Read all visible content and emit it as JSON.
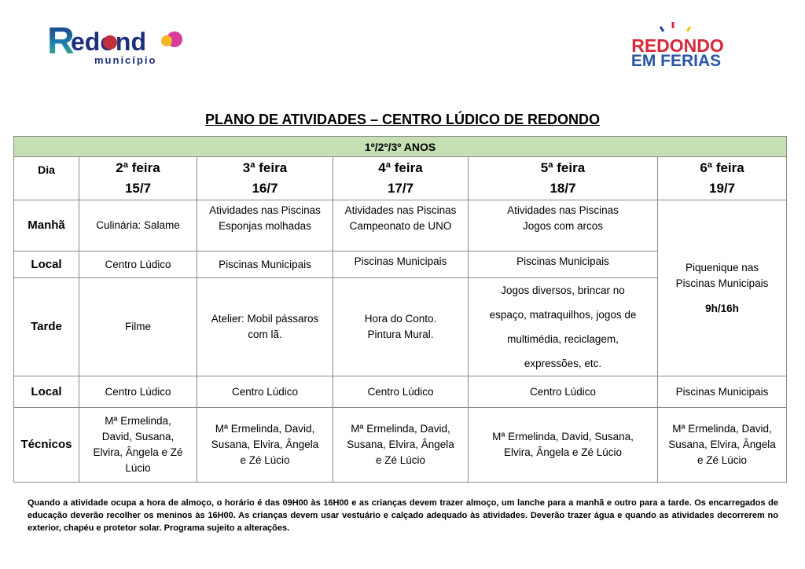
{
  "logos": {
    "left": "Redondo município",
    "right": "REDONDO EM FÉRIAS"
  },
  "title": "PLANO DE ATIVIDADES – CENTRO LÚDICO DE REDONDO",
  "grade": "1º/2º/3º ANOS",
  "header": {
    "dia": "Dia",
    "days": [
      {
        "name": "2ª feira",
        "date": "15/7"
      },
      {
        "name": "3ª feira",
        "date": "16/7"
      },
      {
        "name": "4ª feira",
        "date": "17/7"
      },
      {
        "name": "5ª feira",
        "date": "18/7"
      },
      {
        "name": "6ª feira",
        "date": "19/7"
      }
    ]
  },
  "rows": {
    "manha": {
      "label": "Manhã",
      "cells": [
        [
          "Culinária: Salame"
        ],
        [
          "Atividades nas Piscinas",
          "Esponjas molhadas"
        ],
        [
          "Atividades nas Piscinas",
          "Campeonato de UNO"
        ],
        [
          "Atividades nas Piscinas",
          "Jogos com arcos"
        ]
      ]
    },
    "local1": {
      "label": "Local",
      "cells": [
        "Centro Lúdico",
        "Piscinas Municipais",
        "Piscinas Municipais",
        "Piscinas Municipais"
      ]
    },
    "tarde": {
      "label": "Tarde",
      "cells": [
        [
          "Filme"
        ],
        [
          "Atelier: Mobil pássaros",
          "com lã."
        ],
        [
          "Hora do Conto.",
          "Pintura Mural."
        ],
        [
          "Jogos diversos, brincar no",
          "espaço, matraquilhos, jogos de",
          "multimédia, reciclagem,",
          "expressões, etc."
        ]
      ]
    },
    "sexta": {
      "line1": "Piquenique nas",
      "line2": "Piscinas Municipais",
      "hours": "9h/16h"
    },
    "local2": {
      "label": "Local",
      "cells": [
        "Centro Lúdico",
        "Centro Lúdico",
        "Centro Lúdico",
        "Centro Lúdico",
        "Piscinas Municipais"
      ]
    },
    "tecnicos": {
      "label": "Técnicos",
      "cells": [
        [
          "Mª Ermelinda,",
          "David, Susana,",
          "Elvira, Ângela e Zé",
          "Lúcio"
        ],
        [
          "Mª Ermelinda, David,",
          "Susana, Elvira, Ângela",
          "e Zé Lúcio"
        ],
        [
          "Mª Ermelinda, David,",
          "Susana, Elvira, Ângela",
          "e Zé Lúcio"
        ],
        [
          "Mª Ermelinda, David, Susana,",
          "Elvira, Ângela e Zé Lúcio"
        ],
        [
          "Mª Ermelinda, David,",
          "Susana, Elvira, Ângela",
          "e Zé Lúcio"
        ]
      ]
    }
  },
  "note": "Quando a atividade ocupa a hora de almoço, o horário é das 09H00 às 16H00 e as crianças devem trazer almoço, um lanche para a manhã e outro para a tarde.  Os encarregados de educação deverão recolher os meninos às 16H00. As crianças devem usar vestuário e calçado adequado às atividades. Deverão trazer água e quando as atividades decorrerem no exterior, chapéu e protetor solar. Programa sujeito a alterações."
}
